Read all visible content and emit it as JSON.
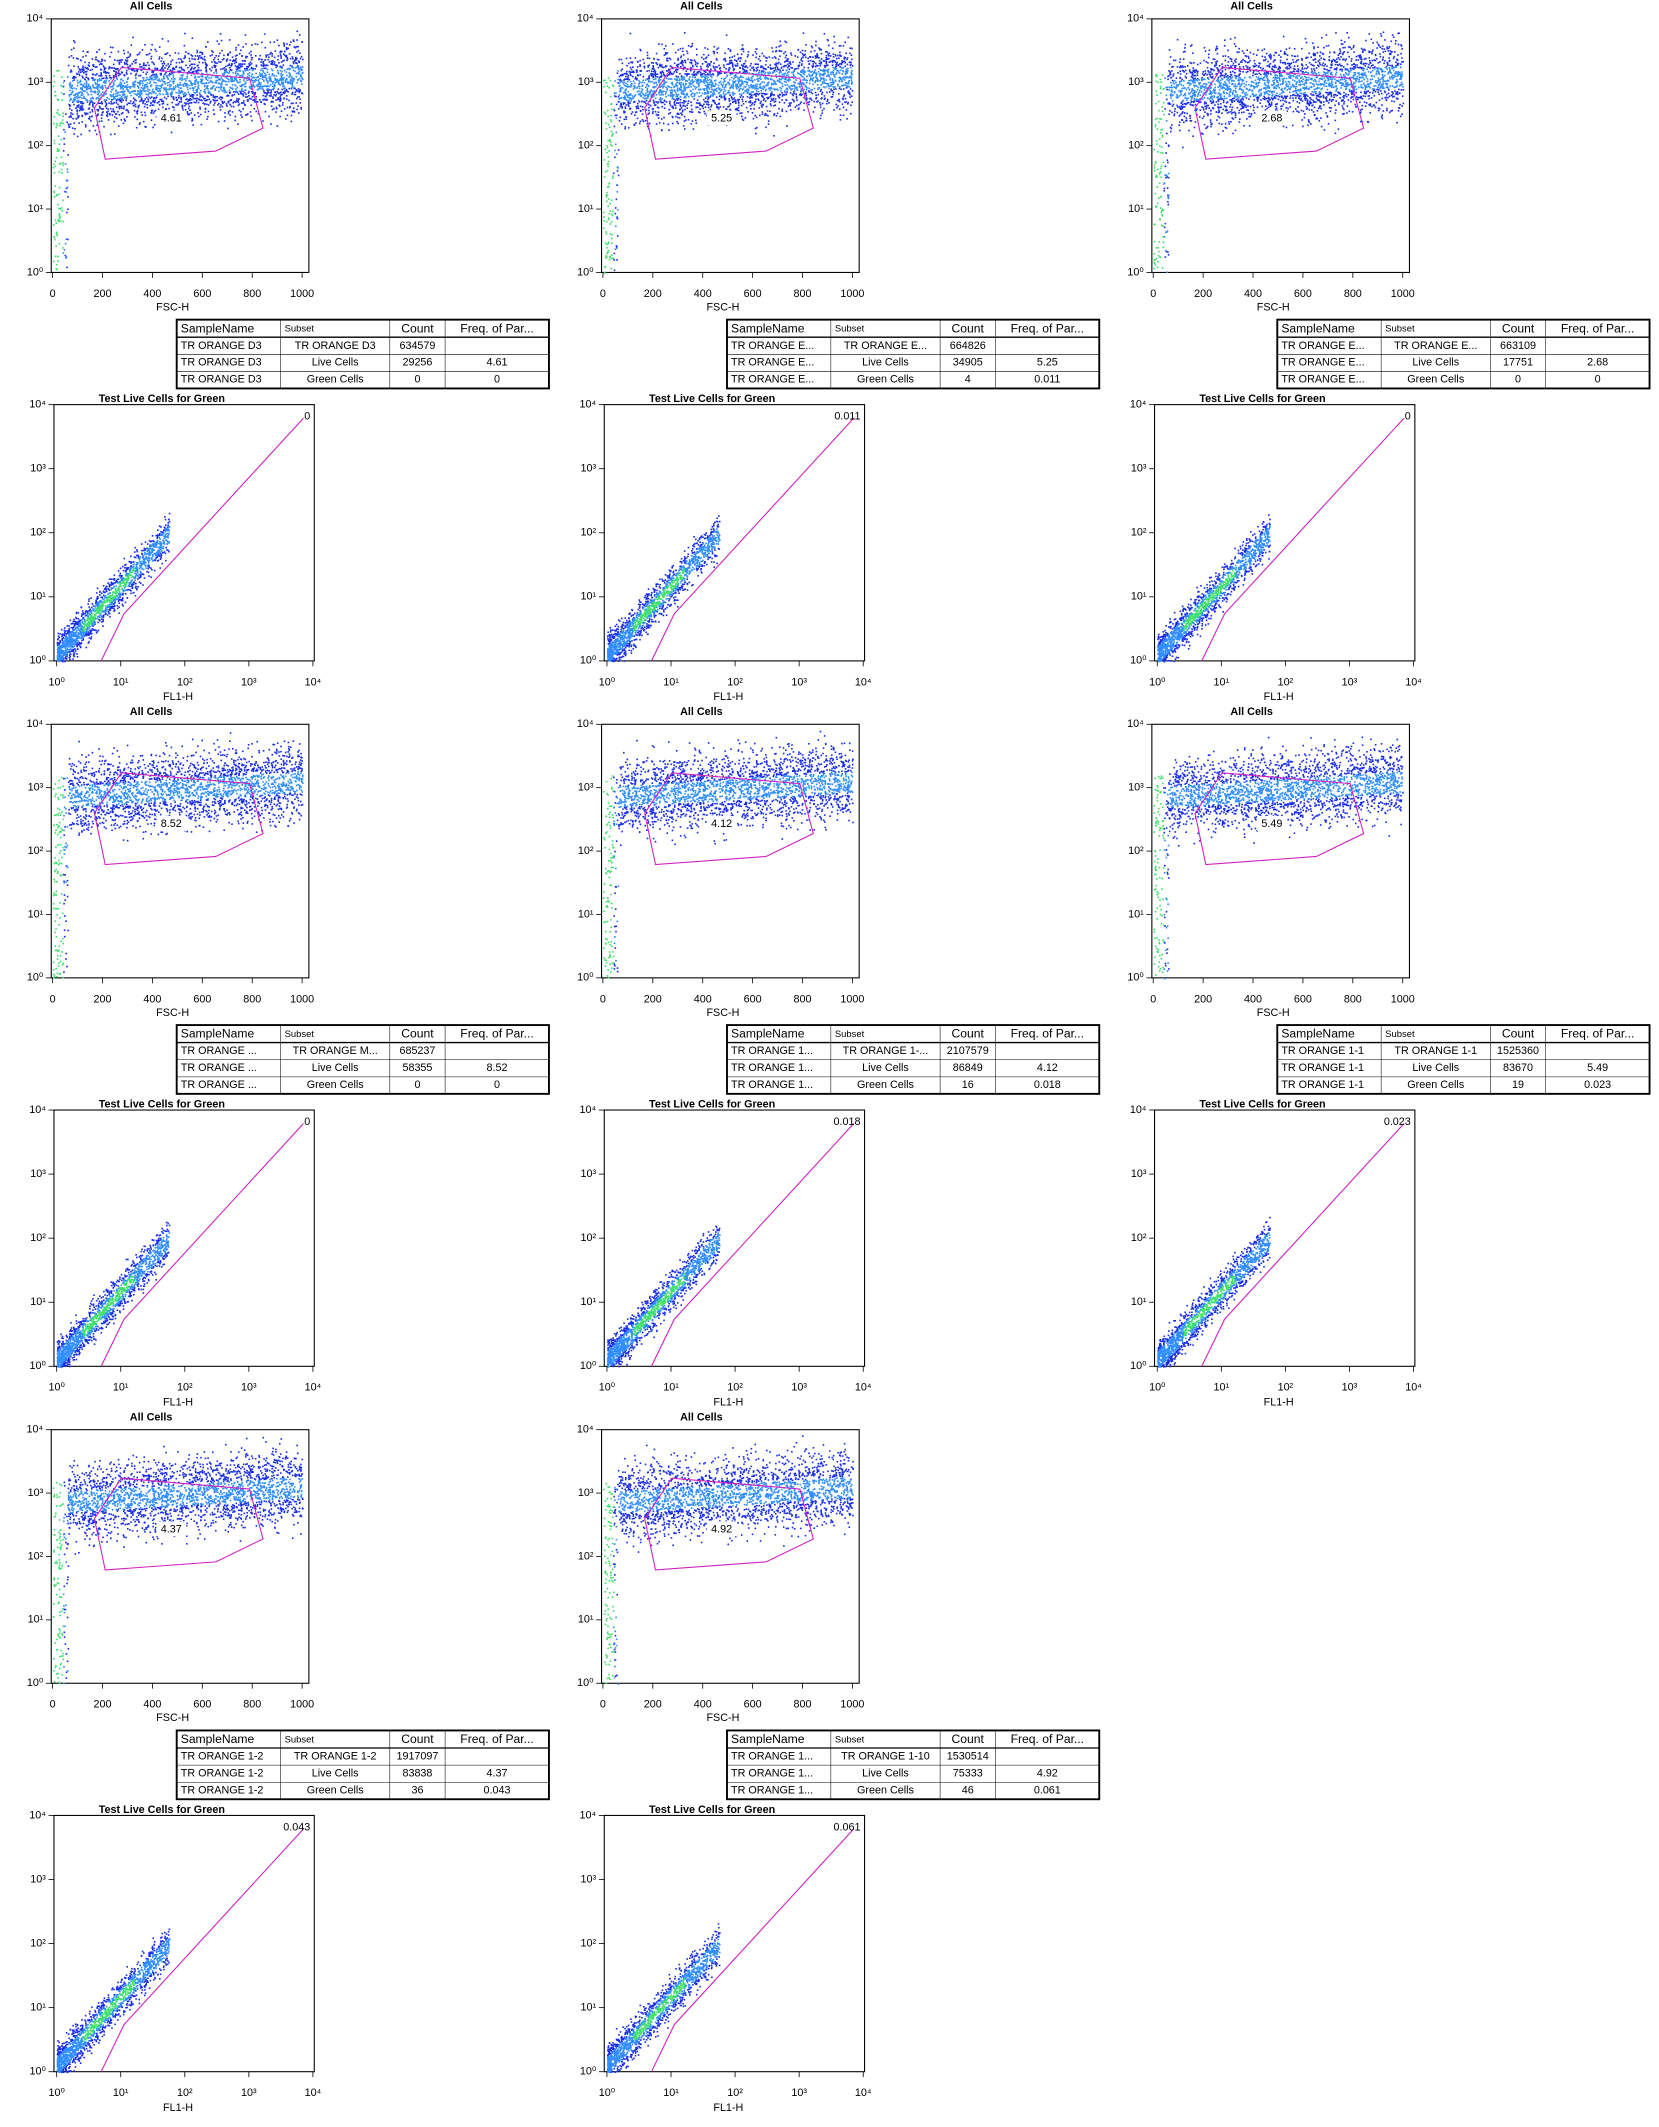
{
  "axes": {
    "log_ticks": [
      {
        "value": 1,
        "label": "10⁰"
      },
      {
        "value": 10,
        "label": "10¹"
      },
      {
        "value": 100,
        "label": "10²"
      },
      {
        "value": 1000,
        "label": "10³"
      },
      {
        "value": 10000,
        "label": "10⁴"
      }
    ],
    "fsc_ticks": [
      0,
      200,
      400,
      600,
      800,
      1000
    ],
    "dot_plot_title": "All Cells",
    "dot_plot_x_label": "FSC-H",
    "green_plot_title": "Test Live Cells for Green",
    "green_plot_x_label": "FL1-H"
  },
  "table_header": [
    "SampleName",
    "Subset",
    "Count",
    "Freq. of Par..."
  ],
  "samples": [
    {
      "rows": [
        [
          "TR ORANGE D3",
          "TR ORANGE D3",
          634579
        ],
        [
          "TR ORANGE D3",
          "Live Cells",
          29256,
          4.61
        ],
        [
          "TR ORANGE D3",
          "Green Cells",
          0,
          0
        ]
      ]
    },
    {
      "rows": [
        [
          "TR ORANGE E...",
          "TR ORANGE E...",
          664826
        ],
        [
          "TR ORANGE E...",
          "Live Cells",
          34905,
          5.25
        ],
        [
          "TR ORANGE E...",
          "Green Cells",
          4,
          0.011
        ]
      ]
    },
    {
      "rows": [
        [
          "TR ORANGE E...",
          "TR ORANGE E...",
          663109
        ],
        [
          "TR ORANGE E...",
          "Live Cells",
          17751,
          2.68
        ],
        [
          "TR ORANGE E...",
          "Green Cells",
          0,
          0
        ]
      ]
    },
    {
      "rows": [
        [
          "TR ORANGE ...",
          "TR ORANGE M...",
          685237
        ],
        [
          "TR ORANGE ...",
          "Live Cells",
          58355,
          8.52
        ],
        [
          "TR ORANGE ...",
          "Green Cells",
          0,
          0
        ]
      ]
    },
    {
      "rows": [
        [
          "TR ORANGE 1...",
          "TR ORANGE 1-...",
          2107579
        ],
        [
          "TR ORANGE 1...",
          "Live Cells",
          86849,
          4.12
        ],
        [
          "TR ORANGE 1...",
          "Green Cells",
          16,
          0.018
        ]
      ]
    },
    {
      "rows": [
        [
          "TR ORANGE 1-1",
          "TR ORANGE 1-1",
          1525360
        ],
        [
          "TR ORANGE 1-1",
          "Live Cells",
          83670,
          5.49
        ],
        [
          "TR ORANGE 1-1",
          "Green Cells",
          19,
          0.023
        ]
      ]
    },
    {
      "rows": [
        [
          "TR ORANGE 1-2",
          "TR ORANGE 1-2",
          1917097
        ],
        [
          "TR ORANGE 1-2",
          "Live Cells",
          83838,
          4.37
        ],
        [
          "TR ORANGE 1-2",
          "Green Cells",
          36,
          0.043
        ]
      ]
    },
    {
      "rows": [
        [
          "TR ORANGE 1...",
          "TR ORANGE 1-10",
          1530514
        ],
        [
          "TR ORANGE 1...",
          "Live Cells",
          75333,
          4.92
        ],
        [
          "TR ORANGE 1...",
          "Green Cells",
          46,
          0.061
        ]
      ]
    }
  ]
}
